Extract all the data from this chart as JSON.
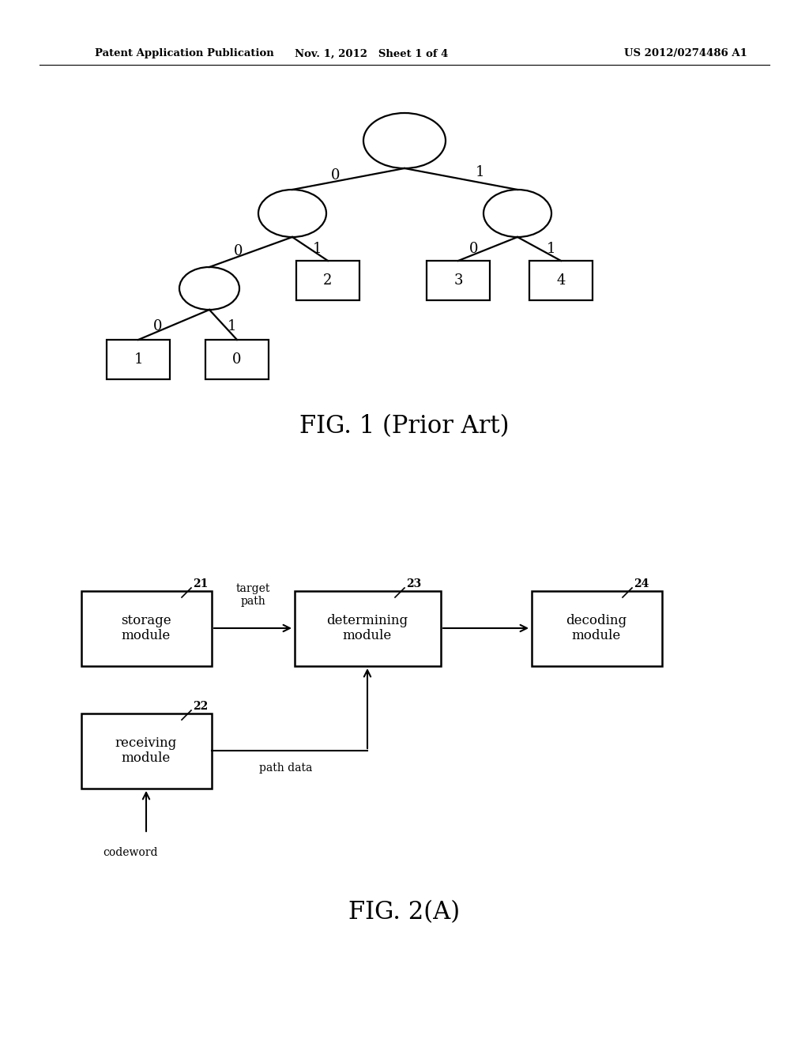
{
  "bg_color": "#ffffff",
  "header_left": "Patent Application Publication",
  "header_mid": "Nov. 1, 2012   Sheet 1 of 4",
  "header_right": "US 2012/0274486 A1",
  "fig1_caption": "FIG. 1 (Prior Art)",
  "fig2_caption": "FIG. 2(A)",
  "fig_width": 10.24,
  "fig_height": 13.2,
  "dpi": 100
}
